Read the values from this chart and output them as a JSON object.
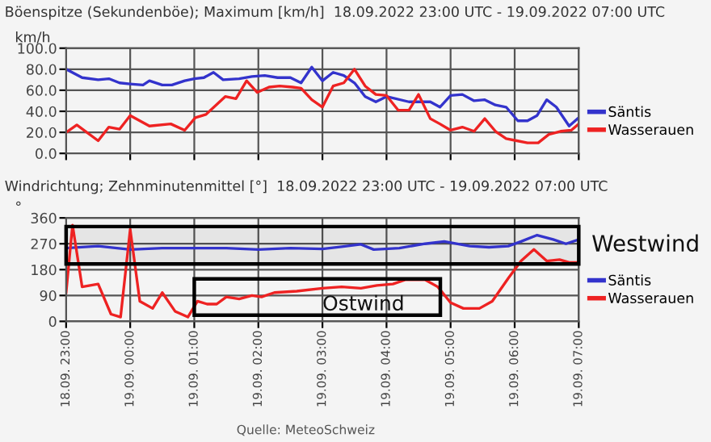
{
  "chart_data": [
    {
      "type": "line",
      "title": "Böenspitze (Sekundenböe); Maximum [km/h]  18.09.2022 23:00 UTC - 19.09.2022 07:00 UTC",
      "ylabel": "km/h",
      "xlim": [
        "2022-09-18T23:00",
        "2022-09-19T07:00"
      ],
      "xticks": [
        {
          "value": "2022-09-18T23:00",
          "label": null
        },
        {
          "value": "2022-09-19T00:00",
          "label": null
        },
        {
          "value": "2022-09-19T01:00",
          "label": null
        },
        {
          "value": "2022-09-19T02:00",
          "label": null
        },
        {
          "value": "2022-09-19T03:00",
          "label": null
        },
        {
          "value": "2022-09-19T04:00",
          "label": null
        },
        {
          "value": "2022-09-19T05:00",
          "label": null
        },
        {
          "value": "2022-09-19T06:00",
          "label": null
        },
        {
          "value": "2022-09-19T07:00",
          "label": null
        }
      ],
      "ylim": [
        0,
        100
      ],
      "yticks": [
        {
          "value": 0,
          "label": "0.0"
        },
        {
          "value": 20,
          "label": "20.0"
        },
        {
          "value": 40,
          "label": "40.0"
        },
        {
          "value": 60,
          "label": "60.0"
        },
        {
          "value": 80,
          "label": "80.0"
        },
        {
          "value": 100,
          "label": "100.0"
        }
      ],
      "tick_labels": "y",
      "grid": true,
      "legend": "right",
      "marker": "none",
      "line_style": "solid",
      "series": [
        {
          "name": "Säntis",
          "color": "#3333cc",
          "x": [
            "2022-09-18T23:00",
            "2022-09-18T23:15",
            "2022-09-18T23:30",
            "2022-09-18T23:40",
            "2022-09-18T23:50",
            "2022-09-19T00:00",
            "2022-09-19T00:12",
            "2022-09-19T00:18",
            "2022-09-19T00:30",
            "2022-09-19T00:39",
            "2022-09-19T00:51",
            "2022-09-19T01:00",
            "2022-09-19T01:09",
            "2022-09-19T01:18",
            "2022-09-19T01:27",
            "2022-09-19T01:42",
            "2022-09-19T01:54",
            "2022-09-19T02:06",
            "2022-09-19T02:18",
            "2022-09-19T02:30",
            "2022-09-19T02:40",
            "2022-09-19T02:50",
            "2022-09-19T03:00",
            "2022-09-19T03:10",
            "2022-09-19T03:20",
            "2022-09-19T03:30",
            "2022-09-19T03:40",
            "2022-09-19T03:50",
            "2022-09-19T04:00",
            "2022-09-19T04:21",
            "2022-09-19T04:41",
            "2022-09-19T04:50",
            "2022-09-19T05:00",
            "2022-09-19T05:11",
            "2022-09-19T05:22",
            "2022-09-19T05:32",
            "2022-09-19T05:42",
            "2022-09-19T05:52",
            "2022-09-19T06:03",
            "2022-09-19T06:12",
            "2022-09-19T06:21",
            "2022-09-19T06:30",
            "2022-09-19T06:39",
            "2022-09-19T06:51",
            "2022-09-19T07:00"
          ],
          "values": [
            80,
            72,
            70,
            71,
            67,
            66,
            65,
            69,
            65,
            65,
            69,
            71,
            72,
            77,
            70,
            71,
            73,
            74,
            72,
            72,
            67,
            82,
            69,
            77,
            74,
            67,
            54,
            49,
            54,
            49,
            49,
            44,
            55,
            56,
            50,
            51,
            46,
            44,
            31,
            31,
            36,
            51,
            44,
            26,
            34
          ]
        },
        {
          "name": "Wasserauen",
          "color": "#ee2222",
          "x": [
            "2022-09-18T23:00",
            "2022-09-18T23:10",
            "2022-09-18T23:30",
            "2022-09-18T23:40",
            "2022-09-18T23:50",
            "2022-09-19T00:00",
            "2022-09-19T00:18",
            "2022-09-19T00:38",
            "2022-09-19T00:51",
            "2022-09-19T01:01",
            "2022-09-19T01:11",
            "2022-09-19T01:29",
            "2022-09-19T01:39",
            "2022-09-19T01:49",
            "2022-09-19T01:59",
            "2022-09-19T02:10",
            "2022-09-19T02:20",
            "2022-09-19T02:32",
            "2022-09-19T02:40",
            "2022-09-19T02:50",
            "2022-09-19T03:00",
            "2022-09-19T03:10",
            "2022-09-19T03:20",
            "2022-09-19T03:30",
            "2022-09-19T03:40",
            "2022-09-19T03:50",
            "2022-09-19T04:00",
            "2022-09-19T04:11",
            "2022-09-19T04:21",
            "2022-09-19T04:30",
            "2022-09-19T04:41",
            "2022-09-19T04:50",
            "2022-09-19T05:00",
            "2022-09-19T05:11",
            "2022-09-19T05:22",
            "2022-09-19T05:32",
            "2022-09-19T05:42",
            "2022-09-19T05:52",
            "2022-09-19T06:02",
            "2022-09-19T06:12",
            "2022-09-19T06:22",
            "2022-09-19T06:32",
            "2022-09-19T06:43",
            "2022-09-19T06:53",
            "2022-09-19T07:00"
          ],
          "values": [
            20,
            27,
            12,
            25,
            23,
            36,
            26,
            28,
            22,
            34,
            37,
            54,
            52,
            69,
            58,
            63,
            64,
            63,
            62,
            51,
            44,
            64,
            67,
            80,
            64,
            56,
            55,
            41,
            41,
            56,
            33,
            28,
            22,
            25,
            21,
            33,
            21,
            14,
            12,
            10,
            10,
            18,
            21,
            22,
            28
          ]
        }
      ]
    },
    {
      "type": "line",
      "title": "Windrichtung; Zehnminutenmittel [°]  18.09.2022 23:00 UTC - 19.09.2022 07:00 UTC",
      "ylabel": "°",
      "xlim": [
        "2022-09-18T23:00",
        "2022-09-19T07:00"
      ],
      "xticks": [
        {
          "value": "2022-09-18T23:00",
          "label": "18.09. 23:00"
        },
        {
          "value": "2022-09-19T00:00",
          "label": "19.09. 00:00"
        },
        {
          "value": "2022-09-19T01:00",
          "label": "19.09. 01:00"
        },
        {
          "value": "2022-09-19T02:00",
          "label": "19.09. 02:00"
        },
        {
          "value": "2022-09-19T03:00",
          "label": "19.09. 03:00"
        },
        {
          "value": "2022-09-19T04:00",
          "label": "19.09. 04:00"
        },
        {
          "value": "2022-09-19T05:00",
          "label": "19.09. 05:00"
        },
        {
          "value": "2022-09-19T06:00",
          "label": "19.09. 06:00"
        },
        {
          "value": "2022-09-19T07:00",
          "label": "19.09. 07:00"
        }
      ],
      "ylim": [
        0,
        360
      ],
      "yticks": [
        0,
        90,
        180,
        270,
        360
      ],
      "grid": true,
      "legend": "right",
      "marker": "none",
      "line_style": "solid",
      "bands": [
        {
          "axis": "y",
          "from": 200,
          "to": 330,
          "label": "Westwind",
          "color": "#000000"
        }
      ],
      "annotations": [
        "Ostwind",
        "Quelle: MeteoSchweiz"
      ],
      "series": [
        {
          "name": "Säntis",
          "color": "#3333cc",
          "x": [
            "2022-09-18T23:00",
            "2022-09-18T23:30",
            "2022-09-19T00:00",
            "2022-09-19T00:30",
            "2022-09-19T01:00",
            "2022-09-19T01:30",
            "2022-09-19T02:00",
            "2022-09-19T02:30",
            "2022-09-19T03:00",
            "2022-09-19T03:18",
            "2022-09-19T03:36",
            "2022-09-19T03:48",
            "2022-09-19T04:12",
            "2022-09-19T04:36",
            "2022-09-19T04:54",
            "2022-09-19T05:18",
            "2022-09-19T05:36",
            "2022-09-19T05:54",
            "2022-09-19T06:06",
            "2022-09-19T06:21",
            "2022-09-19T06:36",
            "2022-09-19T06:48",
            "2022-09-19T07:00"
          ],
          "values": [
            255,
            262,
            250,
            255,
            255,
            255,
            250,
            255,
            252,
            260,
            268,
            250,
            255,
            270,
            278,
            262,
            258,
            262,
            278,
            300,
            285,
            270,
            285
          ]
        },
        {
          "name": "Wasserauen",
          "color": "#ee2222",
          "x": [
            "2022-09-18T23:00",
            "2022-09-18T23:06",
            "2022-09-18T23:15",
            "2022-09-18T23:30",
            "2022-09-18T23:42",
            "2022-09-18T23:51",
            "2022-09-19T00:00",
            "2022-09-19T00:09",
            "2022-09-19T00:21",
            "2022-09-19T00:30",
            "2022-09-19T00:42",
            "2022-09-19T00:54",
            "2022-09-19T01:03",
            "2022-09-19T01:12",
            "2022-09-19T01:21",
            "2022-09-19T01:30",
            "2022-09-19T01:42",
            "2022-09-19T01:54",
            "2022-09-19T02:03",
            "2022-09-19T02:15",
            "2022-09-19T02:36",
            "2022-09-19T03:00",
            "2022-09-19T03:18",
            "2022-09-19T03:36",
            "2022-09-19T03:51",
            "2022-09-19T04:06",
            "2022-09-19T04:18",
            "2022-09-19T04:36",
            "2022-09-19T04:48",
            "2022-09-19T05:00",
            "2022-09-19T05:12",
            "2022-09-19T05:27",
            "2022-09-19T05:39",
            "2022-09-19T05:54",
            "2022-09-19T06:06",
            "2022-09-19T06:18",
            "2022-09-19T06:30",
            "2022-09-19T06:42",
            "2022-09-19T06:51",
            "2022-09-19T07:00"
          ],
          "values": [
            100,
            335,
            120,
            130,
            25,
            15,
            320,
            70,
            45,
            100,
            35,
            15,
            70,
            60,
            60,
            85,
            78,
            90,
            85,
            100,
            105,
            115,
            120,
            115,
            125,
            130,
            145,
            145,
            120,
            65,
            45,
            45,
            70,
            150,
            210,
            250,
            210,
            215,
            205,
            205
          ]
        }
      ]
    }
  ]
}
